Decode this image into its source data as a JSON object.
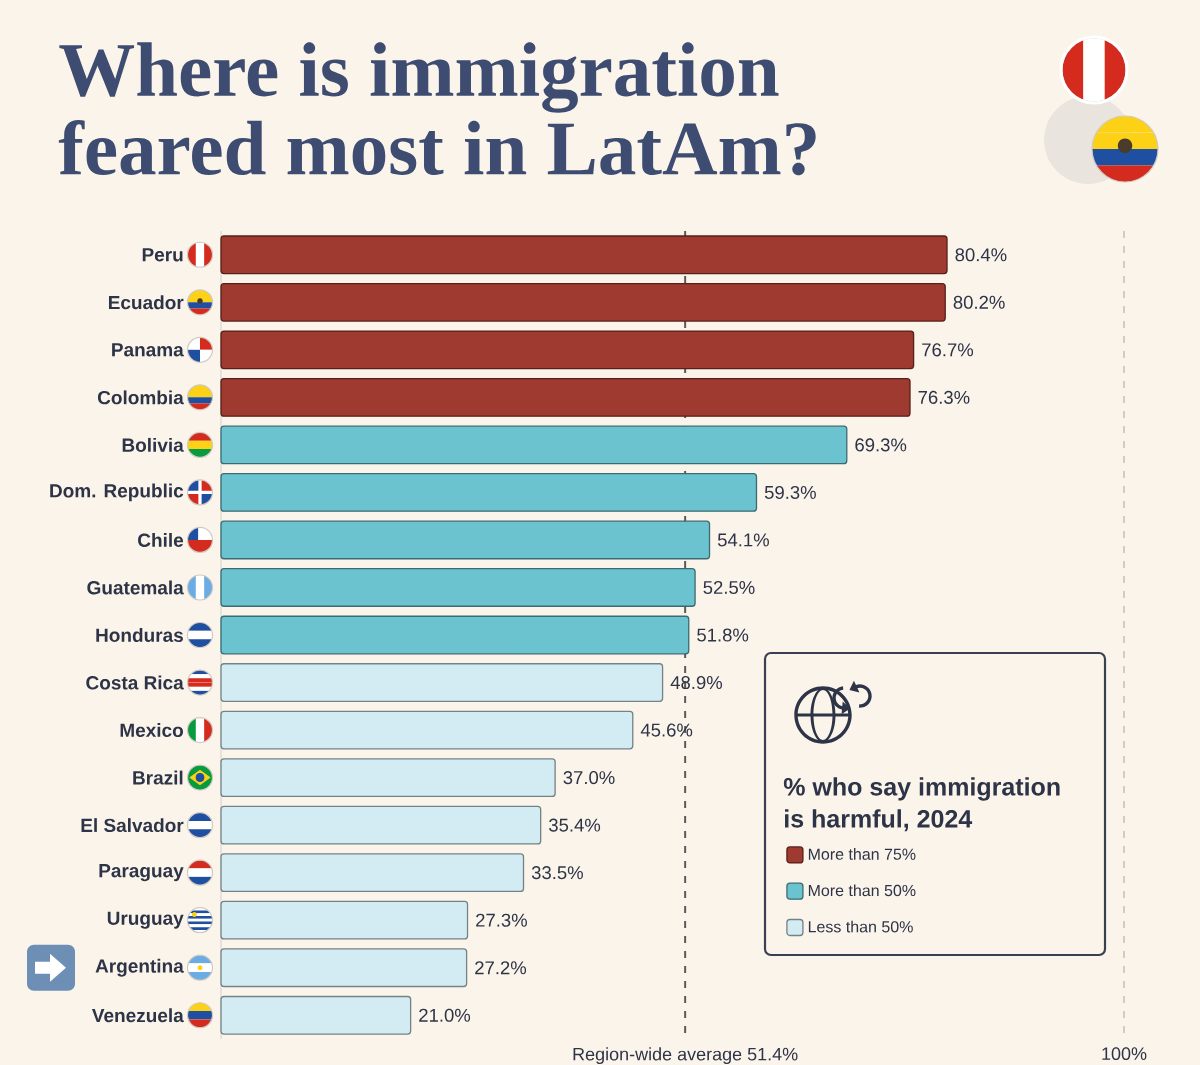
{
  "chart_data": {
    "type": "bar",
    "orientation": "horizontal",
    "title": "Where is immigration feared most in LatAm?",
    "legend_title": "% who say immigration is harmful, 2024",
    "categories": [
      "Peru",
      "Ecuador",
      "Panama",
      "Colombia",
      "Bolivia",
      "Dom. Republic",
      "Chile",
      "Guatemala",
      "Honduras",
      "Costa Rica",
      "Mexico",
      "Brazil",
      "El Salvador",
      "Paraguay",
      "Uruguay",
      "Argentina",
      "Venezuela"
    ],
    "series": [
      {
        "name": "More than 75%",
        "color": "#9E3A30",
        "values": [
          80.4,
          80.2,
          76.7,
          76.3,
          null,
          null,
          null,
          null,
          null,
          null,
          null,
          null,
          null,
          null,
          null,
          null,
          null
        ],
        "value_labels": [
          "80.4%",
          "80.2%",
          "76.7%",
          "76.3%",
          null,
          null,
          null,
          null,
          null,
          null,
          null,
          null,
          null,
          null,
          null,
          null,
          null
        ]
      },
      {
        "name": "More than 50%",
        "color": "#6CC3D0",
        "values": [
          null,
          null,
          null,
          null,
          69.3,
          59.3,
          54.1,
          52.5,
          51.8,
          null,
          null,
          null,
          null,
          null,
          null,
          null,
          null
        ],
        "value_labels": [
          null,
          null,
          null,
          null,
          "69.3%",
          "59.3%",
          "54.1%",
          "52.5%",
          "51.8%",
          null,
          null,
          null,
          null,
          null,
          null,
          null,
          null
        ]
      },
      {
        "name": "Less than 50%",
        "color": "#D3ECF3",
        "values": [
          null,
          null,
          null,
          null,
          null,
          null,
          null,
          null,
          null,
          48.9,
          45.6,
          37.0,
          35.4,
          33.5,
          27.3,
          27.2,
          21.0
        ],
        "value_labels": [
          null,
          null,
          null,
          null,
          null,
          null,
          null,
          null,
          null,
          "48.9%",
          "45.6%",
          "37.0%",
          "35.4%",
          "33.5%",
          "27.3%",
          "27.2%",
          "21.0%"
        ]
      }
    ],
    "xlim": [
      0,
      100
    ],
    "ref_lines": [
      {
        "axis": "x",
        "value": 51.4,
        "label": "Region-wide average 51.4%",
        "line_style": "dashed",
        "color": "#5A5A5A"
      },
      {
        "axis": "x",
        "value": 100,
        "label": "100%",
        "line_style": "dashed",
        "color": "#D2CCC4"
      }
    ],
    "legend": "bottom right",
    "tick_labels": "y"
  }
}
